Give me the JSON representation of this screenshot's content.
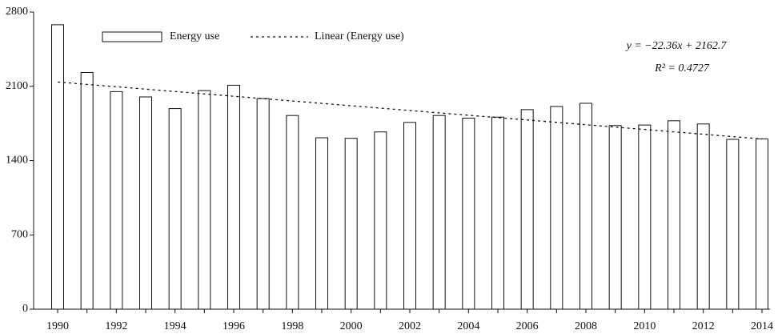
{
  "chart_data": {
    "type": "bar",
    "categories": [
      1990,
      null,
      1992,
      null,
      1994,
      null,
      1996,
      null,
      1998,
      null,
      2000,
      null,
      2002,
      null,
      2004,
      null,
      2006,
      null,
      2008,
      null,
      2010,
      null,
      2012,
      null,
      2014
    ],
    "series": [
      {
        "name": "Energy use",
        "type": "bar",
        "color": "#ffffff",
        "values": [
          2680,
          2230,
          2050,
          2000,
          1890,
          2060,
          2110,
          1985,
          1825,
          1615,
          1610,
          1670,
          1760,
          1825,
          1800,
          1810,
          1880,
          1910,
          1940,
          1730,
          1735,
          1775,
          1745,
          1600,
          1605
        ]
      },
      {
        "name": "Linear (Energy use)",
        "type": "line",
        "color": "#111111",
        "values": [
          2140.34,
          2117.98,
          2095.62,
          2073.26,
          2050.9,
          2028.54,
          2006.18,
          1983.82,
          1961.46,
          1939.1,
          1916.74,
          1894.38,
          1872.02,
          1849.66,
          1827.3,
          1804.94,
          1782.58,
          1760.22,
          1737.86,
          1715.5,
          1693.14,
          1670.78,
          1648.42,
          1626.06,
          1603.7
        ]
      }
    ],
    "annotations": [
      "y = −22.36x + 2162.7",
      "R² = 0.4727"
    ],
    "ylim": [
      0,
      2800
    ],
    "yticks": [
      0,
      700,
      1400,
      2100,
      2800
    ],
    "grid": false,
    "legend": "top-left"
  }
}
